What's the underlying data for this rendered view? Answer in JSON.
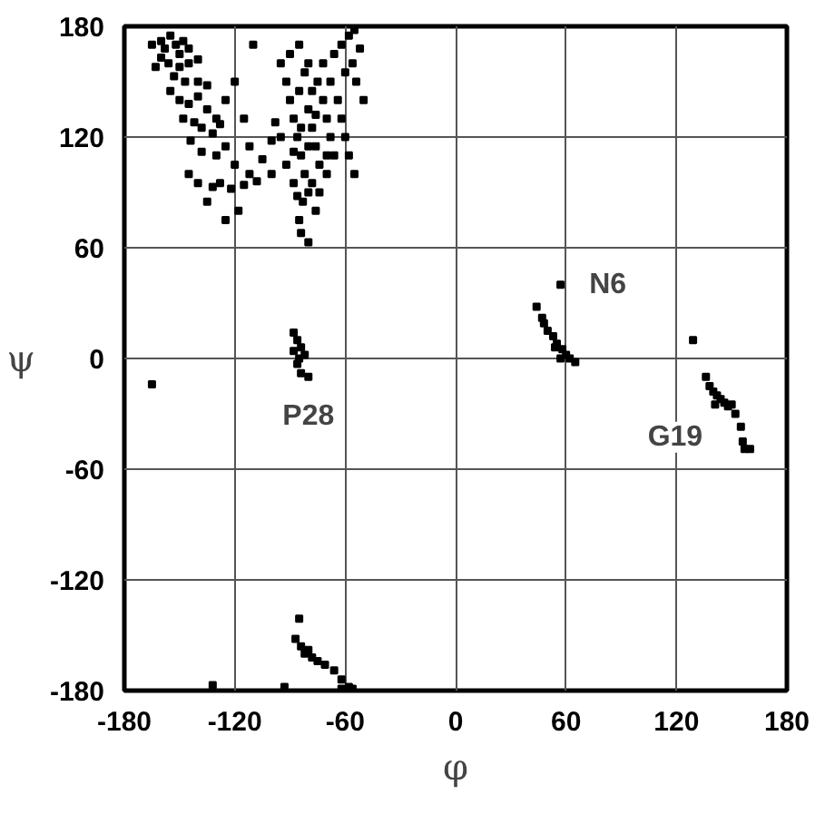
{
  "chart_data": {
    "type": "scatter",
    "xlabel": "φ",
    "ylabel": "ψ",
    "xlim": [
      -180,
      180
    ],
    "ylim": [
      -180,
      180
    ],
    "xticks": [
      -180,
      -120,
      -60,
      0,
      60,
      120,
      180
    ],
    "yticks": [
      -180,
      -120,
      -60,
      0,
      60,
      120,
      180
    ],
    "grid": true,
    "marker": "square",
    "annotations": [
      {
        "text": "N6",
        "x": 57,
        "y": 40
      },
      {
        "text": "P28",
        "x": -80,
        "y": -10
      },
      {
        "text": "G19",
        "x": 141,
        "y": -25
      }
    ],
    "series": [
      {
        "color": "#000000",
        "x": [
          -165,
          -160,
          -158,
          -155,
          -152,
          -150,
          -148,
          -145,
          -160,
          -156,
          -150,
          -145,
          -140,
          -163,
          -153,
          -147,
          -140,
          -135,
          -155,
          -150,
          -145,
          -140,
          -135,
          -130,
          -148,
          -142,
          -138,
          -132,
          -128,
          -125,
          -120,
          -115,
          -144,
          -138,
          -130,
          -125,
          -120,
          -112,
          -105,
          -100,
          -145,
          -140,
          -132,
          -128,
          -122,
          -115,
          -108,
          -135,
          -125,
          -118,
          -110,
          -112,
          -95,
          -92,
          -90,
          -88,
          -86,
          -84,
          -82,
          -80,
          -85,
          -80,
          -78,
          -76,
          -74,
          -78,
          -83,
          -88,
          -92,
          -95,
          -90,
          -85,
          -80,
          -75,
          -72,
          -70,
          -68,
          -66,
          -70,
          -74,
          -76,
          -82,
          -78,
          -84,
          -80,
          -72,
          -68,
          -64,
          -62,
          -60,
          -58,
          -62,
          -58,
          -55,
          -52,
          -56,
          -60,
          -54,
          -50,
          -66,
          -98,
          -100,
          -85,
          -84,
          -80,
          -55,
          -88,
          -76,
          -70,
          -86,
          -88,
          -86,
          -84,
          -88,
          -85,
          -82,
          -86,
          -84,
          -80,
          -165,
          57,
          44,
          47,
          48,
          50,
          53,
          55,
          58,
          60,
          62,
          65,
          57,
          54,
          129,
          136,
          138,
          140,
          142,
          144,
          146,
          148,
          150,
          141,
          152,
          155,
          157,
          160,
          156,
          -85,
          -87,
          -84,
          -82,
          -78,
          -75,
          -71,
          -80,
          -66,
          -62,
          -58,
          -56,
          -132,
          -93,
          -62
        ],
        "values": [
          170,
          172,
          168,
          175,
          170,
          165,
          172,
          168,
          163,
          160,
          158,
          160,
          162,
          158,
          153,
          150,
          150,
          148,
          145,
          140,
          138,
          142,
          135,
          130,
          130,
          128,
          125,
          122,
          127,
          140,
          150,
          130,
          118,
          112,
          110,
          115,
          105,
          100,
          108,
          100,
          100,
          95,
          93,
          95,
          92,
          94,
          96,
          85,
          75,
          80,
          170,
          115,
          160,
          150,
          140,
          130,
          120,
          110,
          100,
          90,
          145,
          135,
          125,
          115,
          105,
          95,
          85,
          95,
          105,
          120,
          165,
          170,
          160,
          150,
          140,
          130,
          120,
          110,
          100,
          90,
          80,
          155,
          145,
          125,
          115,
          160,
          150,
          140,
          130,
          120,
          110,
          170,
          175,
          178,
          168,
          160,
          155,
          150,
          140,
          165,
          128,
          118,
          75,
          68,
          63,
          100,
          112,
          132,
          110,
          88,
          14,
          10,
          6,
          4,
          0,
          2,
          -3,
          -8,
          -10,
          -14,
          40,
          28,
          22,
          19,
          15,
          12,
          8,
          5,
          2,
          0,
          -2,
          0,
          6,
          10,
          -10,
          -15,
          -18,
          -20,
          -22,
          -24,
          -26,
          -25,
          -25,
          -30,
          -37,
          -49,
          -49,
          -45,
          -141,
          -152,
          -156,
          -160,
          -162,
          -164,
          -166,
          -158,
          -169,
          -174,
          -178,
          -179,
          -177,
          -178,
          -179
        ]
      }
    ]
  }
}
